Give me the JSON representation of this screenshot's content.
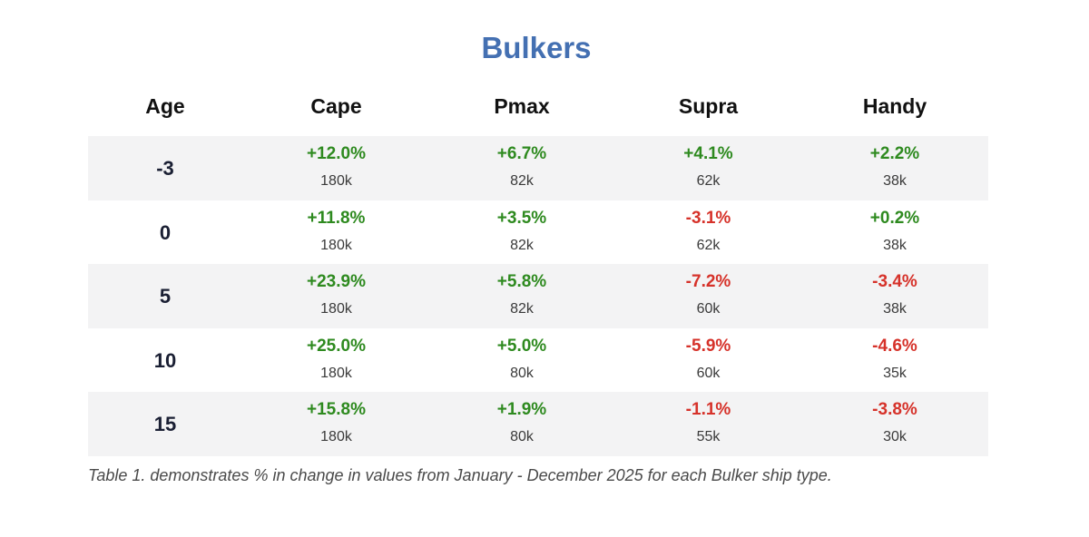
{
  "chart_data": {
    "type": "table",
    "title": "Bulkers",
    "columns": [
      "Age",
      "Cape",
      "Pmax",
      "Supra",
      "Handy"
    ],
    "rows": [
      {
        "age": "-3",
        "cells": [
          {
            "pct": "+12.0%",
            "size": "180k",
            "sign": "pos"
          },
          {
            "pct": "+6.7%",
            "size": "82k",
            "sign": "pos"
          },
          {
            "pct": "+4.1%",
            "size": "62k",
            "sign": "pos"
          },
          {
            "pct": "+2.2%",
            "size": "38k",
            "sign": "pos"
          }
        ]
      },
      {
        "age": "0",
        "cells": [
          {
            "pct": "+11.8%",
            "size": "180k",
            "sign": "pos"
          },
          {
            "pct": "+3.5%",
            "size": "82k",
            "sign": "pos"
          },
          {
            "pct": "-3.1%",
            "size": "62k",
            "sign": "neg"
          },
          {
            "pct": "+0.2%",
            "size": "38k",
            "sign": "pos"
          }
        ]
      },
      {
        "age": "5",
        "cells": [
          {
            "pct": "+23.9%",
            "size": "180k",
            "sign": "pos"
          },
          {
            "pct": "+5.8%",
            "size": "82k",
            "sign": "pos"
          },
          {
            "pct": "-7.2%",
            "size": "60k",
            "sign": "neg"
          },
          {
            "pct": "-3.4%",
            "size": "38k",
            "sign": "neg"
          }
        ]
      },
      {
        "age": "10",
        "cells": [
          {
            "pct": "+25.0%",
            "size": "180k",
            "sign": "pos"
          },
          {
            "pct": "+5.0%",
            "size": "80k",
            "sign": "pos"
          },
          {
            "pct": "-5.9%",
            "size": "60k",
            "sign": "neg"
          },
          {
            "pct": "-4.6%",
            "size": "35k",
            "sign": "neg"
          }
        ]
      },
      {
        "age": "15",
        "cells": [
          {
            "pct": "+15.8%",
            "size": "180k",
            "sign": "pos"
          },
          {
            "pct": "+1.9%",
            "size": "80k",
            "sign": "pos"
          },
          {
            "pct": "-1.1%",
            "size": "55k",
            "sign": "neg"
          },
          {
            "pct": "-3.8%",
            "size": "30k",
            "sign": "neg"
          }
        ]
      }
    ],
    "caption": "Table 1. demonstrates % in change in values from January - December 2025 for each Bulker ship type."
  },
  "colors": {
    "title": "#4470b2",
    "positive": "#2e8a1f",
    "negative": "#d6322a",
    "row_shade": "#f3f3f4"
  }
}
